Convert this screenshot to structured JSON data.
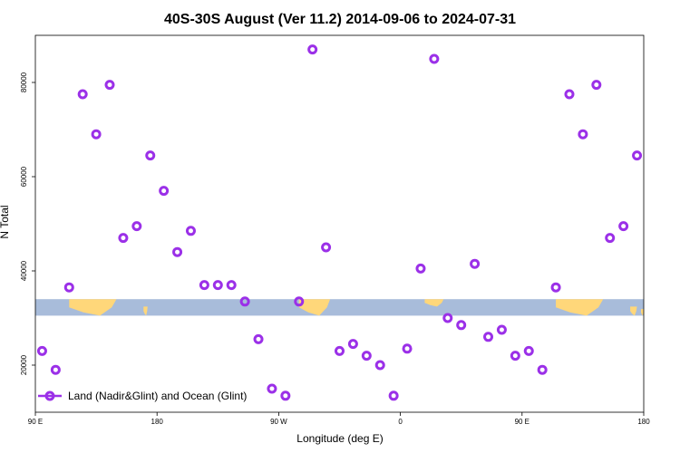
{
  "chart_data": {
    "type": "scatter",
    "title": "40S-30S August (Ver 11.2)   2014-09-06 to 2024-07-31",
    "xlabel": "Longitude (deg E)",
    "ylabel": "N Total",
    "x_ticks": [
      {
        "value": 90,
        "label": "90 E"
      },
      {
        "value": 180,
        "label": "180"
      },
      {
        "value": 270,
        "label": "90 W"
      },
      {
        "value": 360,
        "label": "0"
      },
      {
        "value": 450,
        "label": "90 E"
      },
      {
        "value": 540,
        "label": "180"
      }
    ],
    "y_ticks": [
      20000,
      40000,
      60000,
      80000
    ],
    "xlim": [
      90,
      540
    ],
    "ylim": [
      10000,
      90000
    ],
    "grid": false,
    "legend": {
      "position": "bottom-left",
      "entries": [
        "Land (Nadir&Glint) and Ocean (Glint)"
      ]
    },
    "colors": {
      "points": "#9b30e8",
      "map_ocean": "#a8bcda",
      "map_land": "#ffd77a"
    },
    "map_strip": {
      "lat_range": "40S-30S",
      "y_range": [
        30500,
        34000
      ]
    },
    "series": [
      {
        "name": "Land (Nadir&Glint) and Ocean (Glint)",
        "points": [
          [
            95,
            23000
          ],
          [
            105,
            19000
          ],
          [
            115,
            36500
          ],
          [
            125,
            77500
          ],
          [
            135,
            69000
          ],
          [
            145,
            79500
          ],
          [
            155,
            47000
          ],
          [
            165,
            49500
          ],
          [
            175,
            64500
          ],
          [
            185,
            57000
          ],
          [
            195,
            44000
          ],
          [
            205,
            48500
          ],
          [
            215,
            37000
          ],
          [
            225,
            37000
          ],
          [
            235,
            37000
          ],
          [
            245,
            33500
          ],
          [
            255,
            25500
          ],
          [
            265,
            15000
          ],
          [
            275,
            13500
          ],
          [
            285,
            33500
          ],
          [
            295,
            87000
          ],
          [
            305,
            45000
          ],
          [
            315,
            23000
          ],
          [
            325,
            24500
          ],
          [
            335,
            22000
          ],
          [
            345,
            20000
          ],
          [
            355,
            13500
          ],
          [
            365,
            23500
          ],
          [
            375,
            40500
          ],
          [
            385,
            85000
          ],
          [
            395,
            30000
          ],
          [
            405,
            28500
          ],
          [
            415,
            41500
          ],
          [
            425,
            26000
          ],
          [
            435,
            27500
          ],
          [
            445,
            22000
          ],
          [
            455,
            23000
          ],
          [
            465,
            19000
          ],
          [
            475,
            36500
          ],
          [
            485,
            77500
          ],
          [
            495,
            69000
          ],
          [
            505,
            79500
          ],
          [
            515,
            47000
          ],
          [
            525,
            49500
          ],
          [
            535,
            64500
          ]
        ]
      }
    ]
  }
}
